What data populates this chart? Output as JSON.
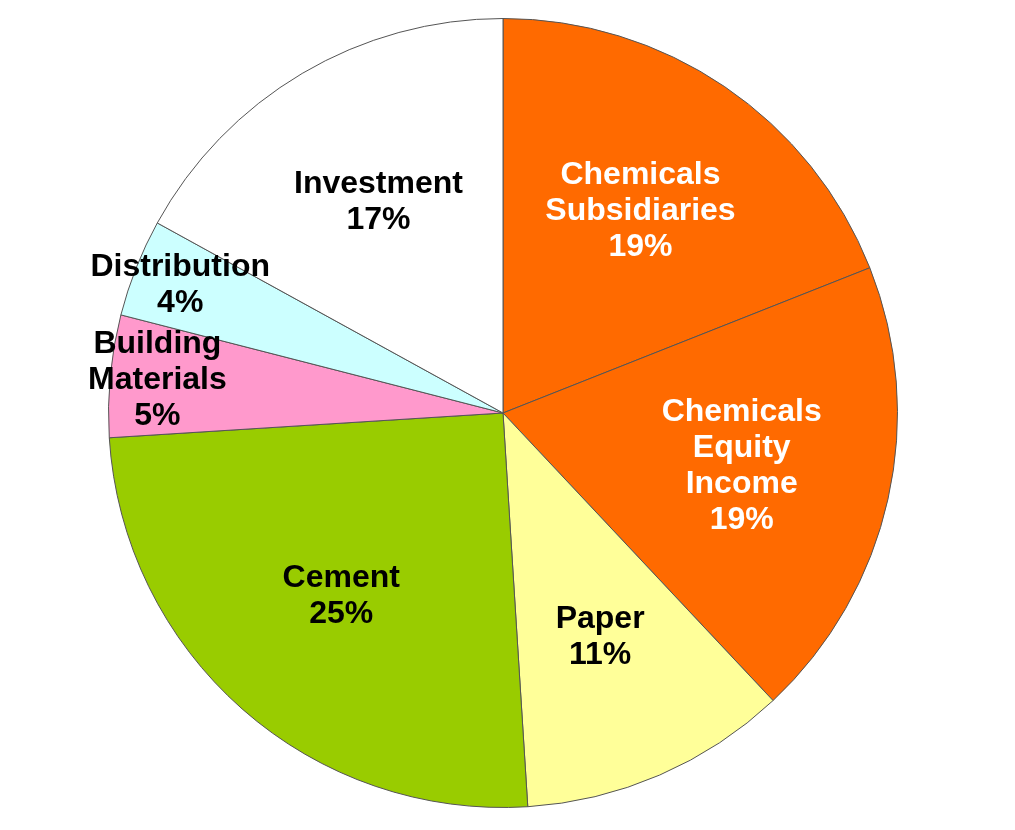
{
  "chart_data": {
    "type": "pie",
    "categories": [
      "Chemicals Subsidiaries",
      "Chemicals Equity Income",
      "Paper",
      "Cement",
      "Building Materials",
      "Distribution",
      "Investment"
    ],
    "values": [
      19,
      19,
      11,
      25,
      5,
      4,
      17
    ],
    "value_labels": [
      "19%",
      "19%",
      "11%",
      "25%",
      "5%",
      "4%",
      "17%"
    ],
    "colors": [
      "#ff6a00",
      "#ff6a00",
      "#ffff99",
      "#99cc00",
      "#ff99cc",
      "#ccffff",
      "#ffffff"
    ],
    "legend": false
  }
}
